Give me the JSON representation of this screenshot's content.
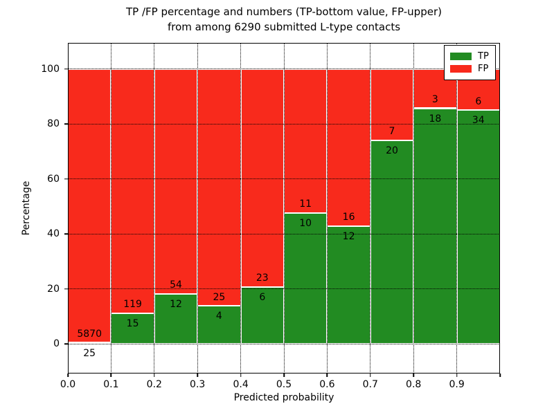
{
  "chart_data": {
    "type": "bar",
    "variant": "stacked-percentage",
    "title_line1": "TP /FP percentage and numbers (TP-bottom value, FP-upper)",
    "title_line2": "from among 6290 submitted L-type contacts",
    "xlabel": "Predicted probability",
    "ylabel": "Percentage",
    "categories": [
      "0.0-0.1",
      "0.1-0.2",
      "0.2-0.3",
      "0.3-0.4",
      "0.4-0.5",
      "0.5-0.6",
      "0.6-0.7",
      "0.7-0.8",
      "0.8-0.9",
      "0.9-1.0"
    ],
    "series": [
      {
        "name": "TP",
        "color": "#228b22",
        "counts": [
          25,
          15,
          12,
          4,
          6,
          10,
          12,
          20,
          18,
          34
        ]
      },
      {
        "name": "FP",
        "color": "#f82a1c",
        "counts": [
          5870,
          119,
          54,
          25,
          23,
          11,
          16,
          7,
          3,
          6
        ]
      }
    ],
    "bar_edge_color": "#ffffff",
    "stack_total_percent": 100,
    "x_tick_labels": [
      "0.0",
      "0.1",
      "0.2",
      "0.3",
      "0.4",
      "0.5",
      "0.6",
      "0.7",
      "0.8",
      "0.9"
    ],
    "y_ticks": [
      0,
      20,
      40,
      60,
      80,
      100
    ],
    "xlim": [
      0,
      1
    ],
    "ylim": [
      -10.8,
      109.5
    ],
    "grid": "dotted black, horizontal at y ticks and vertical at x ticks, drawn above bars",
    "legend": {
      "position": "upper right",
      "entries": [
        {
          "label": "TP",
          "color": "#228b22"
        },
        {
          "label": "FP",
          "color": "#f82a1c"
        }
      ]
    }
  }
}
